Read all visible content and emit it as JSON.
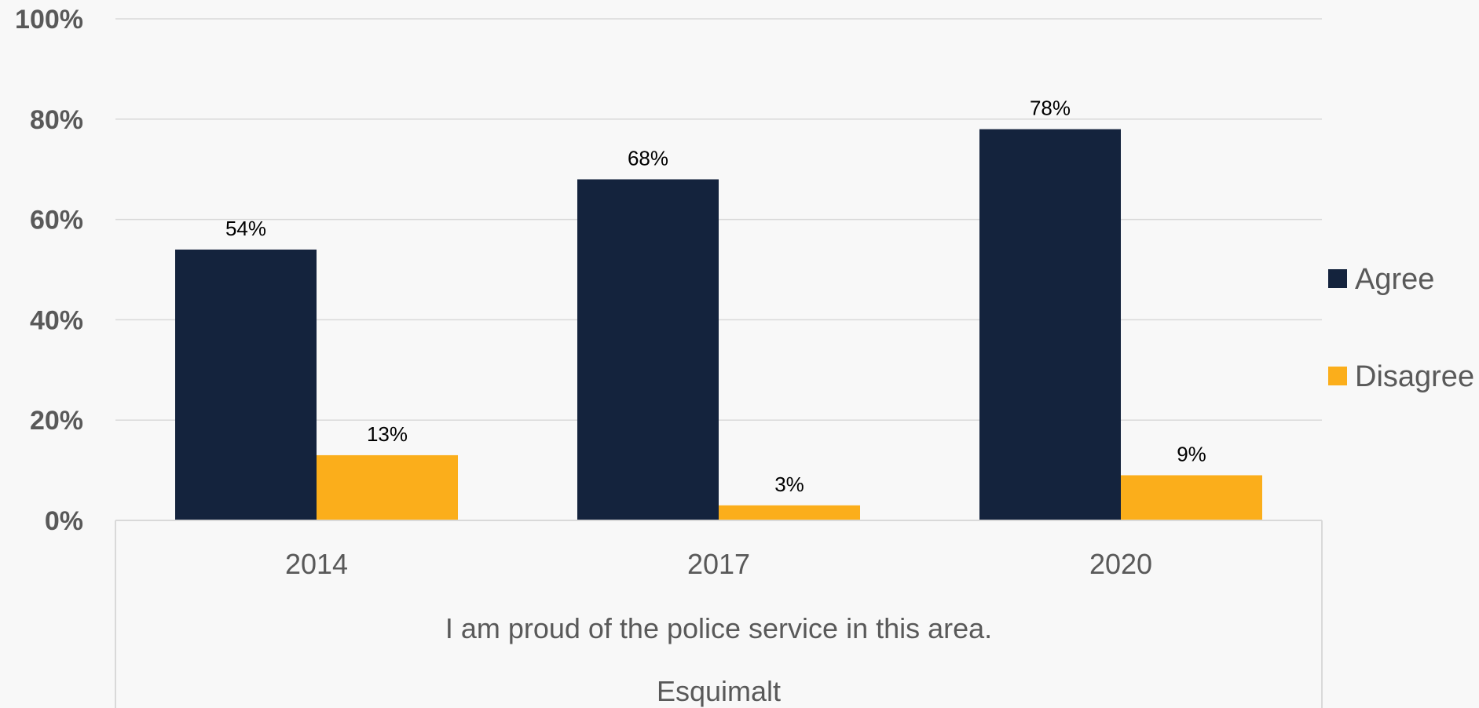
{
  "chart_data": {
    "type": "bar",
    "categories": [
      "2014",
      "2017",
      "2020"
    ],
    "group_labels": [
      "I am proud of the police service in this area.",
      "Esquimalt"
    ],
    "series": [
      {
        "name": "Agree",
        "values": [
          54,
          68,
          78
        ],
        "color": "#14233d"
      },
      {
        "name": "Disagree",
        "values": [
          13,
          3,
          9
        ],
        "color": "#fbae1b"
      }
    ],
    "data_labels": [
      [
        "54%",
        "68%",
        "78%"
      ],
      [
        "13%",
        "3%",
        "9%"
      ]
    ],
    "y_ticks": [
      0,
      20,
      40,
      60,
      80,
      100
    ],
    "y_tick_labels": [
      "0%",
      "20%",
      "40%",
      "60%",
      "80%",
      "100%"
    ],
    "ylim": [
      0,
      100
    ],
    "grid": true,
    "legend_position": "right",
    "xlabel": "",
    "ylabel": "",
    "title": ""
  }
}
